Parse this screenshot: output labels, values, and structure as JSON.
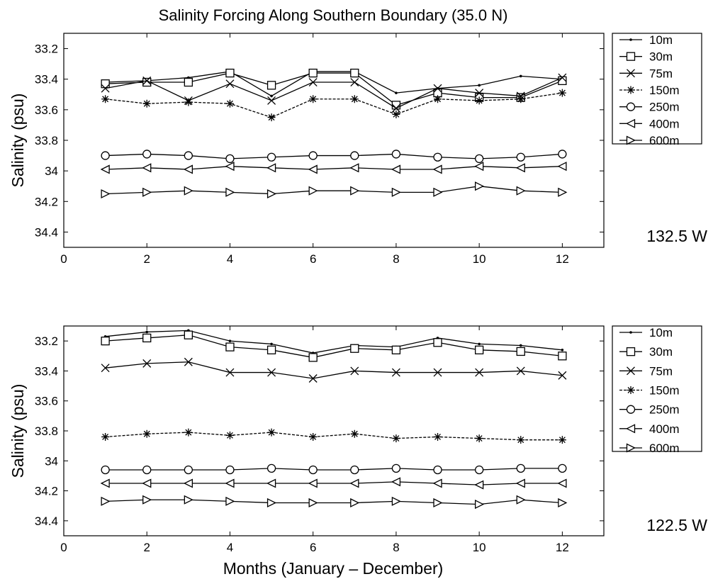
{
  "figure": {
    "title": "Salinity Forcing Along Southern Boundary (35.0 N)",
    "xlabel": "Months (January – December)"
  },
  "legend_labels": [
    "10m",
    "30m",
    "75m",
    "150m",
    "250m",
    "400m",
    "600m"
  ],
  "chart_data": [
    {
      "type": "line",
      "panel_label": "132.5 W",
      "ylabel": "Salinity (psu)",
      "x": [
        1,
        2,
        3,
        4,
        5,
        6,
        7,
        8,
        9,
        10,
        11,
        12
      ],
      "xlim": [
        0,
        13
      ],
      "ylim": [
        33.1,
        34.5
      ],
      "y_reversed": true,
      "xticks": [
        0,
        2,
        4,
        6,
        8,
        10,
        12
      ],
      "yticks": [
        33.2,
        33.4,
        33.6,
        33.8,
        34,
        34.2,
        34.4
      ],
      "ytick_labels": [
        "33.2",
        "33.4",
        "33.6",
        "33.8",
        "34",
        "34.2",
        "34.4"
      ],
      "grid": false,
      "legend_position": "outside-right",
      "series": [
        {
          "name": "10m",
          "marker": "dot",
          "values": [
            33.42,
            33.41,
            33.39,
            33.35,
            33.51,
            33.35,
            33.35,
            33.49,
            33.46,
            33.44,
            33.38,
            33.4
          ]
        },
        {
          "name": "30m",
          "marker": "square",
          "values": [
            33.43,
            33.42,
            33.42,
            33.36,
            33.44,
            33.36,
            33.36,
            33.57,
            33.49,
            33.52,
            33.52,
            33.41
          ]
        },
        {
          "name": "75m",
          "marker": "x",
          "values": [
            33.46,
            33.41,
            33.54,
            33.43,
            33.54,
            33.42,
            33.42,
            33.59,
            33.46,
            33.49,
            33.51,
            33.39
          ]
        },
        {
          "name": "150m",
          "marker": "star",
          "values": [
            33.53,
            33.56,
            33.55,
            33.56,
            33.65,
            33.53,
            33.53,
            33.63,
            33.53,
            33.54,
            33.53,
            33.49
          ]
        },
        {
          "name": "250m",
          "marker": "circle",
          "values": [
            33.9,
            33.89,
            33.9,
            33.92,
            33.91,
            33.9,
            33.9,
            33.89,
            33.91,
            33.92,
            33.91,
            33.89
          ]
        },
        {
          "name": "400m",
          "marker": "triangle-left",
          "values": [
            33.99,
            33.98,
            33.99,
            33.97,
            33.98,
            33.99,
            33.98,
            33.99,
            33.99,
            33.97,
            33.98,
            33.97
          ]
        },
        {
          "name": "600m",
          "marker": "triangle-right",
          "values": [
            34.15,
            34.14,
            34.13,
            34.14,
            34.15,
            34.13,
            34.13,
            34.14,
            34.14,
            34.1,
            34.13,
            34.14
          ]
        }
      ]
    },
    {
      "type": "line",
      "panel_label": "122.5 W",
      "ylabel": "Salinity (psu)",
      "x": [
        1,
        2,
        3,
        4,
        5,
        6,
        7,
        8,
        9,
        10,
        11,
        12
      ],
      "xlim": [
        0,
        13
      ],
      "ylim": [
        33.1,
        34.5
      ],
      "y_reversed": true,
      "xticks": [
        0,
        2,
        4,
        6,
        8,
        10,
        12
      ],
      "yticks": [
        33.2,
        33.4,
        33.6,
        33.8,
        34,
        34.2,
        34.4
      ],
      "ytick_labels": [
        "33.2",
        "33.4",
        "33.6",
        "33.8",
        "34",
        "34.2",
        "34.4"
      ],
      "grid": false,
      "legend_position": "outside-right",
      "series": [
        {
          "name": "10m",
          "marker": "dot",
          "values": [
            33.17,
            33.14,
            33.13,
            33.2,
            33.22,
            33.28,
            33.23,
            33.24,
            33.18,
            33.22,
            33.23,
            33.26
          ]
        },
        {
          "name": "30m",
          "marker": "square",
          "values": [
            33.2,
            33.18,
            33.16,
            33.24,
            33.26,
            33.31,
            33.25,
            33.26,
            33.21,
            33.26,
            33.27,
            33.3
          ]
        },
        {
          "name": "75m",
          "marker": "x",
          "values": [
            33.38,
            33.35,
            33.34,
            33.41,
            33.41,
            33.45,
            33.4,
            33.41,
            33.41,
            33.41,
            33.4,
            33.43
          ]
        },
        {
          "name": "150m",
          "marker": "star",
          "values": [
            33.84,
            33.82,
            33.81,
            33.83,
            33.81,
            33.84,
            33.82,
            33.85,
            33.84,
            33.85,
            33.86,
            33.86
          ]
        },
        {
          "name": "250m",
          "marker": "circle",
          "values": [
            34.06,
            34.06,
            34.06,
            34.06,
            34.05,
            34.06,
            34.06,
            34.05,
            34.06,
            34.06,
            34.05,
            34.05
          ]
        },
        {
          "name": "400m",
          "marker": "triangle-left",
          "values": [
            34.15,
            34.15,
            34.15,
            34.15,
            34.15,
            34.15,
            34.15,
            34.14,
            34.15,
            34.16,
            34.15,
            34.15
          ]
        },
        {
          "name": "600m",
          "marker": "triangle-right",
          "values": [
            34.27,
            34.26,
            34.26,
            34.27,
            34.28,
            34.28,
            34.28,
            34.27,
            34.28,
            34.29,
            34.26,
            34.28
          ]
        }
      ]
    }
  ]
}
